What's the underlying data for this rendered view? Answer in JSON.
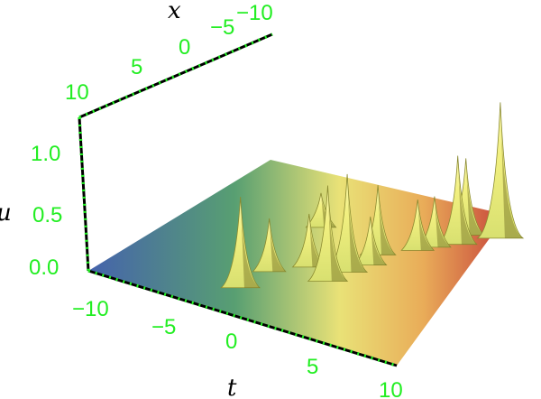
{
  "chart_data": {
    "type": "surface3d",
    "title": "",
    "xlabel": "t",
    "ylabel": "x",
    "zlabel": "u",
    "t_range": [
      -10,
      10
    ],
    "x_range": [
      -10,
      10
    ],
    "u_range": [
      0,
      1.3
    ],
    "t_ticks": [
      "−10",
      "−5",
      "0",
      "5",
      "10"
    ],
    "x_ticks": [
      "10",
      "5",
      "0",
      "−5",
      "−10"
    ],
    "u_ticks": [
      "0.0",
      "0.5",
      "1.0"
    ],
    "colormap": [
      "#3b5aa8",
      "#4f9a6a",
      "#e8e070",
      "#e8a850",
      "#c43a30"
    ],
    "axis_color": "#000000",
    "tick_color": "#22ee22",
    "peaks": [
      {
        "t": -3.3,
        "x": -4.2,
        "u": 0.26
      },
      {
        "t": -2.5,
        "x": 6.0,
        "u": 0.74
      },
      {
        "t": -2.4,
        "x": 3.0,
        "u": 0.42
      },
      {
        "t": -1.0,
        "x": 1.0,
        "u": 0.42
      },
      {
        "t": 0.8,
        "x": 2.0,
        "u": 0.78
      },
      {
        "t": 1.0,
        "x": 0.2,
        "u": 0.8
      },
      {
        "t": 1.5,
        "x": -1.5,
        "u": 0.38
      },
      {
        "t": 1.1,
        "x": -3.0,
        "u": 0.56
      },
      {
        "t": 2.5,
        "x": -5.0,
        "u": 0.4
      },
      {
        "t": 3.0,
        "x": -6.0,
        "u": 0.4
      },
      {
        "t": 3.8,
        "x": -7.2,
        "u": 0.72
      },
      {
        "t": 3.5,
        "x": -8.6,
        "u": 0.62
      },
      {
        "t": 5.2,
        "x": -9.5,
        "u": 1.12
      }
    ]
  }
}
